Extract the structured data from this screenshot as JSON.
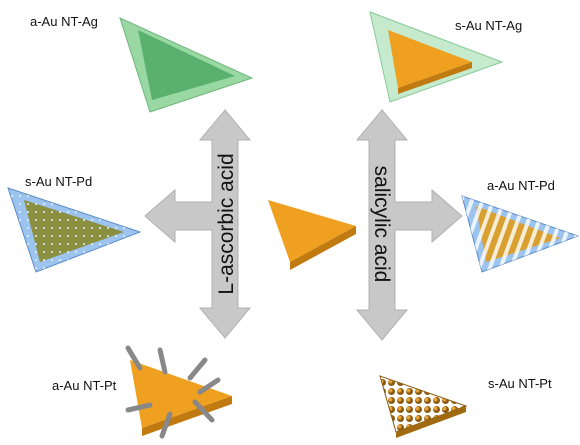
{
  "products": {
    "top_left": "a-Au NT-Ag",
    "top_right": "s-Au NT-Ag",
    "middle_left": "s-Au NT-Pd",
    "middle_right": "a-Au NT-Pd",
    "bottom_left": "a-Au NT-Pt",
    "bottom_right": "s-Au NT-Pt"
  },
  "reagents": {
    "left": "L-ascorbic acid",
    "right": "salicylic acid"
  }
}
